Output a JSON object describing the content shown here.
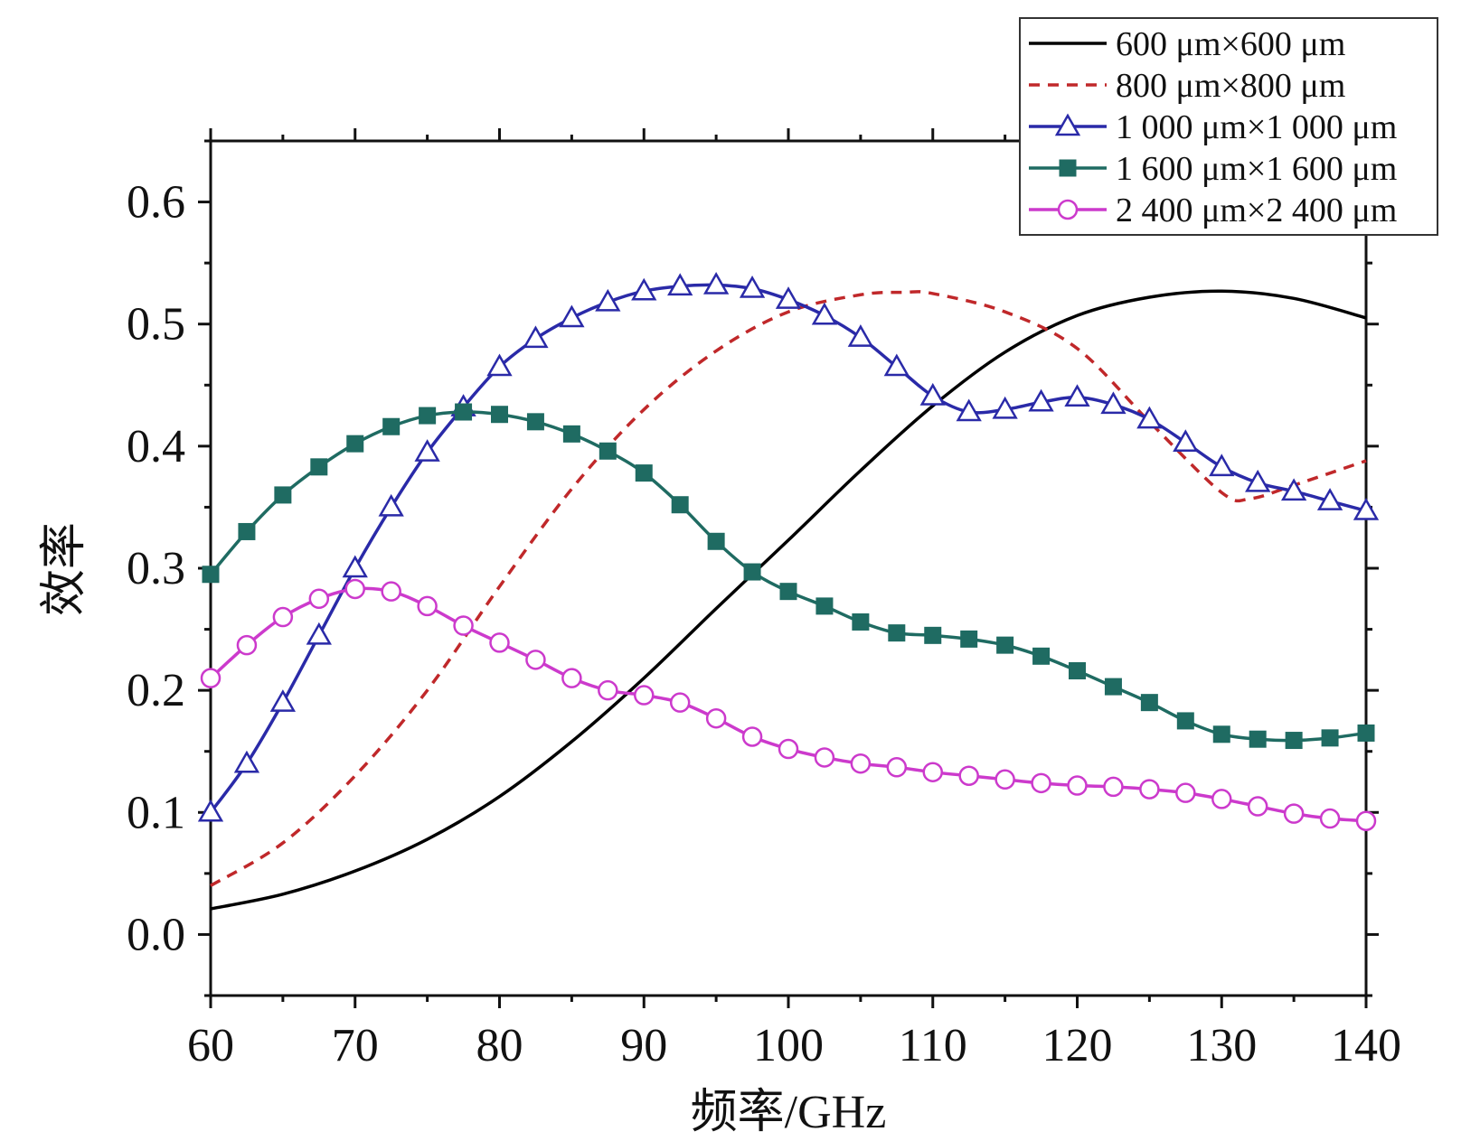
{
  "chart_data": {
    "type": "line",
    "xlabel": "频率/GHz",
    "ylabel": "效率",
    "xlim": [
      60,
      140
    ],
    "ylim": [
      -0.05,
      0.65
    ],
    "xticks": [
      60,
      70,
      80,
      90,
      100,
      110,
      120,
      130,
      140
    ],
    "yticks": [
      0.0,
      0.1,
      0.2,
      0.3,
      0.4,
      0.5,
      0.6
    ],
    "ytick_labels": [
      "0.0",
      "0.1",
      "0.2",
      "0.3",
      "0.4",
      "0.5",
      "0.6"
    ],
    "grid": false,
    "legend_position": "top-right",
    "series": [
      {
        "name": "600 μm×600 μm",
        "color": "#000000",
        "line": "solid",
        "marker": "none",
        "x": [
          60,
          65,
          70,
          75,
          80,
          85,
          90,
          95,
          100,
          105,
          110,
          115,
          120,
          125,
          130,
          135,
          140
        ],
        "values": [
          0.021,
          0.033,
          0.052,
          0.078,
          0.113,
          0.158,
          0.21,
          0.267,
          0.323,
          0.38,
          0.433,
          0.477,
          0.507,
          0.522,
          0.527,
          0.521,
          0.505
        ]
      },
      {
        "name": "800 μm×800 μm",
        "color": "#c0282a",
        "line": "dashed",
        "marker": "none",
        "x": [
          60,
          65,
          70,
          75,
          80,
          85,
          90,
          95,
          100,
          105,
          108,
          110,
          115,
          120,
          125,
          130,
          132,
          135,
          140
        ],
        "values": [
          0.04,
          0.075,
          0.13,
          0.2,
          0.285,
          0.365,
          0.43,
          0.478,
          0.51,
          0.524,
          0.526,
          0.525,
          0.51,
          0.48,
          0.42,
          0.362,
          0.357,
          0.368,
          0.388
        ]
      },
      {
        "name": "1 000 μm×1 000 μm",
        "color": "#2a2aa8",
        "line": "solid",
        "marker": "triangle-open",
        "x": [
          60,
          62.5,
          65,
          67.5,
          70,
          72.5,
          75,
          77.5,
          80,
          82.5,
          85,
          87.5,
          90,
          92.5,
          95,
          97.5,
          100,
          102.5,
          105,
          107.5,
          110,
          112.5,
          115,
          117.5,
          120,
          122.5,
          125,
          127.5,
          130,
          132.5,
          135,
          137.5,
          140
        ],
        "values": [
          0.1,
          0.14,
          0.19,
          0.245,
          0.3,
          0.35,
          0.395,
          0.432,
          0.465,
          0.488,
          0.505,
          0.518,
          0.527,
          0.531,
          0.532,
          0.529,
          0.52,
          0.507,
          0.489,
          0.465,
          0.441,
          0.428,
          0.43,
          0.436,
          0.44,
          0.434,
          0.422,
          0.403,
          0.383,
          0.37,
          0.363,
          0.355,
          0.347
        ]
      },
      {
        "name": "1 600 μm×1 600 μm",
        "color": "#1f6b62",
        "line": "solid",
        "marker": "square-filled",
        "x": [
          60,
          62.5,
          65,
          67.5,
          70,
          72.5,
          75,
          77.5,
          80,
          82.5,
          85,
          87.5,
          90,
          92.5,
          95,
          97.5,
          100,
          102.5,
          105,
          107.5,
          110,
          112.5,
          115,
          117.5,
          120,
          122.5,
          125,
          127.5,
          130,
          132.5,
          135,
          137.5,
          140
        ],
        "values": [
          0.295,
          0.33,
          0.36,
          0.383,
          0.402,
          0.416,
          0.425,
          0.428,
          0.426,
          0.42,
          0.41,
          0.396,
          0.378,
          0.352,
          0.322,
          0.297,
          0.281,
          0.269,
          0.256,
          0.247,
          0.245,
          0.242,
          0.237,
          0.228,
          0.216,
          0.203,
          0.19,
          0.175,
          0.164,
          0.16,
          0.159,
          0.161,
          0.165
        ]
      },
      {
        "name": "2 400 μm×2 400 μm",
        "color": "#cc3acc",
        "line": "solid",
        "marker": "circle-open",
        "x": [
          60,
          62.5,
          65,
          67.5,
          70,
          72.5,
          75,
          77.5,
          80,
          82.5,
          85,
          87.5,
          90,
          92.5,
          95,
          97.5,
          100,
          102.5,
          105,
          107.5,
          110,
          112.5,
          115,
          117.5,
          120,
          122.5,
          125,
          127.5,
          130,
          132.5,
          135,
          137.5,
          140
        ],
        "values": [
          0.21,
          0.237,
          0.26,
          0.275,
          0.283,
          0.281,
          0.269,
          0.253,
          0.239,
          0.225,
          0.21,
          0.2,
          0.196,
          0.19,
          0.177,
          0.162,
          0.152,
          0.145,
          0.14,
          0.137,
          0.133,
          0.13,
          0.127,
          0.124,
          0.122,
          0.121,
          0.119,
          0.116,
          0.111,
          0.105,
          0.099,
          0.095,
          0.093
        ]
      }
    ]
  }
}
